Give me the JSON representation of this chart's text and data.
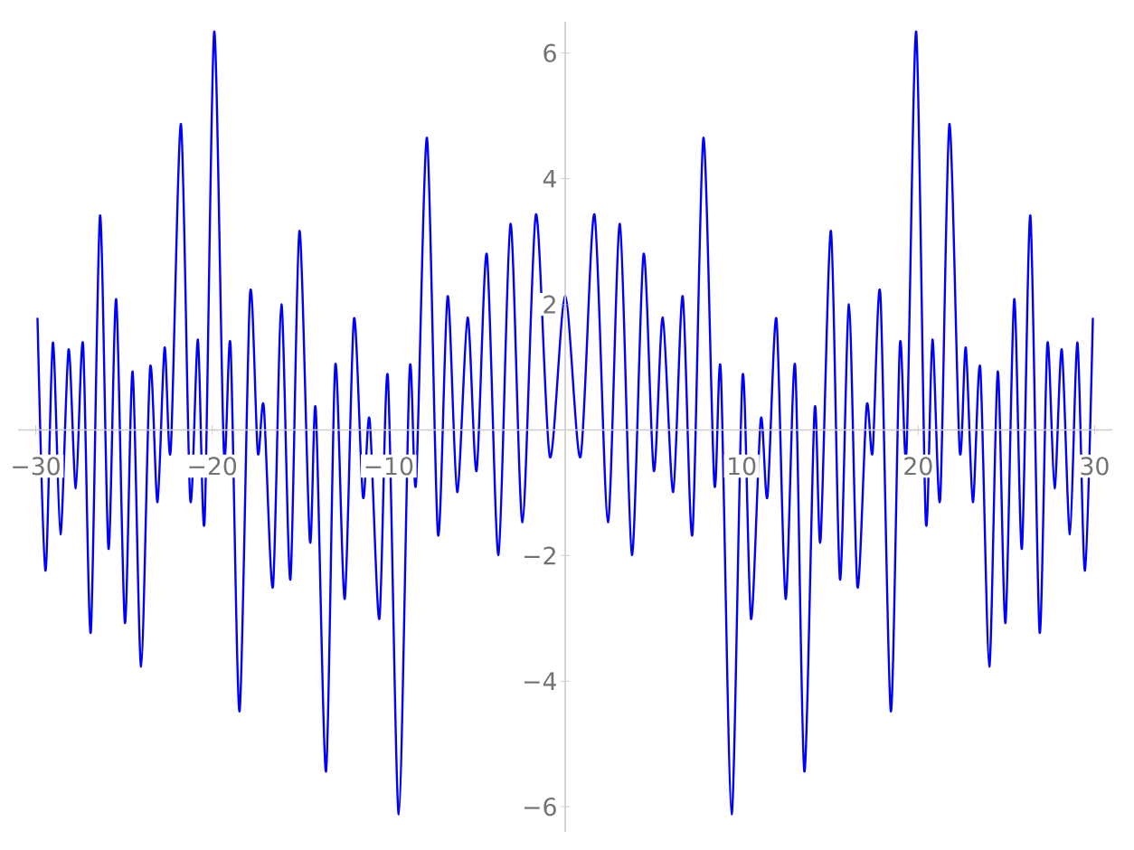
{
  "chart_data": {
    "type": "line",
    "x": [
      -29.9,
      -29.45,
      -29.03,
      -28.6,
      -28.14,
      -27.73,
      -27.32,
      -26.88,
      -26.36,
      -25.88,
      -25.44,
      -24.95,
      -24.51,
      -24.03,
      -23.52,
      -23.1,
      -22.7,
      -22.35,
      -21.77,
      -21.25,
      -20.81,
      -20.43,
      -19.89,
      -19.34,
      -18.96,
      -18.45,
      -17.86,
      -17.42,
      -17.08,
      -16.56,
      -16.08,
      -15.57,
      -15.06,
      -14.47,
      -14.13,
      -13.55,
      -13.03,
      -12.49,
      -11.97,
      -11.46,
      -11.08,
      -10.53,
      -10.05,
      -9.43,
      -8.82,
      -8.45,
      -7.83,
      -7.21,
      -6.66,
      -6.12,
      -5.53,
      -5.02,
      -4.44,
      -3.78,
      -3.1,
      -2.42,
      -1.66,
      -0.87,
      0,
      0.87,
      1.66,
      2.42,
      3.1,
      3.78,
      4.44,
      5.02,
      5.53,
      6.12,
      6.66,
      7.21,
      7.83,
      8.45,
      8.82,
      9.43,
      10.05,
      10.53,
      11.08,
      11.46,
      11.97,
      12.49,
      13.03,
      13.55,
      14.13,
      14.47,
      15.06,
      15.57,
      16.08,
      16.56,
      17.08,
      17.42,
      17.86,
      18.45,
      18.96,
      19.34,
      19.89,
      20.43,
      20.81,
      21.25,
      21.77,
      22.35,
      22.7,
      23.1,
      23.52,
      24.03,
      24.51,
      24.95,
      25.44,
      25.88,
      26.36,
      26.88,
      27.32,
      27.73,
      28.14,
      28.6,
      29.03,
      29.45,
      29.9
    ],
    "series": [
      {
        "color": "#0000ff",
        "values": [
          1.77,
          -2.24,
          1.39,
          -1.66,
          1.28,
          -0.93,
          1.37,
          -3.22,
          3.41,
          -1.89,
          2.08,
          -3.07,
          0.93,
          -3.77,
          0.99,
          -1.15,
          1.31,
          -0.32,
          4.87,
          -1.1,
          1.44,
          -1.44,
          6.34,
          -0.34,
          1.34,
          -4.48,
          2.16,
          -0.36,
          0.38,
          -2.5,
          2.0,
          -2.38,
          3.17,
          -1.76,
          0.32,
          -5.44,
          1.03,
          -2.69,
          1.77,
          -1.07,
          0.17,
          -3.01,
          0.86,
          -6.12,
          0.93,
          -0.85,
          4.65,
          -1.66,
          2.13,
          -0.99,
          1.79,
          -0.65,
          2.8,
          -1.99,
          3.28,
          -1.47,
          3.43,
          -0.43,
          2.14,
          -0.43,
          3.43,
          -1.47,
          3.28,
          -1.99,
          2.8,
          -0.65,
          1.79,
          -0.99,
          2.13,
          -1.66,
          4.65,
          -0.85,
          0.93,
          -6.12,
          0.86,
          -3.01,
          0.17,
          -1.07,
          1.77,
          -2.69,
          1.03,
          -5.44,
          0.32,
          -1.76,
          3.17,
          -2.38,
          2.0,
          -2.5,
          0.38,
          -0.36,
          2.16,
          -4.48,
          1.34,
          -0.34,
          6.34,
          -1.44,
          1.44,
          -1.1,
          4.87,
          -0.32,
          1.31,
          -1.15,
          0.99,
          -3.77,
          0.93,
          -3.07,
          2.08,
          -1.89,
          3.41,
          -3.22,
          1.37,
          -0.93,
          1.28,
          -1.66,
          1.39,
          -2.24,
          1.77
        ]
      }
    ],
    "xlim": [
      -31,
      31
    ],
    "ylim": [
      -6.4,
      6.5
    ],
    "xticks": [
      {
        "value": -30,
        "label": "−30"
      },
      {
        "value": -20,
        "label": "−20"
      },
      {
        "value": -10,
        "label": "−10"
      },
      {
        "value": 10,
        "label": "10"
      },
      {
        "value": 20,
        "label": "20"
      },
      {
        "value": 30,
        "label": "30"
      }
    ],
    "yticks": [
      {
        "value": -6,
        "label": "−6"
      },
      {
        "value": -4,
        "label": "−4"
      },
      {
        "value": -2,
        "label": "−2"
      },
      {
        "value": 2,
        "label": "2"
      },
      {
        "value": 4,
        "label": "4"
      },
      {
        "value": 6,
        "label": "6"
      }
    ],
    "grid": false,
    "marker": "none",
    "line_style": "solid"
  }
}
